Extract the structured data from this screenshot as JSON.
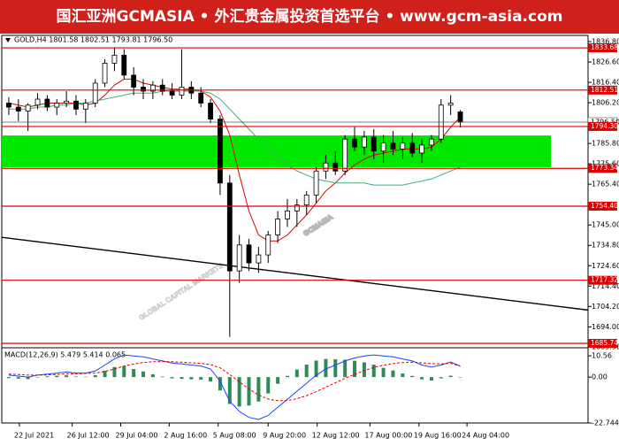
{
  "banner": {
    "title": "国汇亚洲GCMASIA • 外汇贵金属投资首选平台 • www.gcm-asia.com"
  },
  "watermark": {
    "text": "GCMASIA",
    "subtext": "GLOBAL CAPITAL MARKETS"
  },
  "chart_data": [
    {
      "type": "candlestick",
      "title": "GOLD,H4 1801.58 1802.51 1793.81 1796.50",
      "xlim": [
        -0.73,
        60.3
      ],
      "ylim": [
        1683.96,
        1839.9
      ],
      "yticks": [
        {
          "value": 1836.8,
          "label": "1836.80"
        },
        {
          "value": 1826.6,
          "label": "1826.60"
        },
        {
          "value": 1816.4,
          "label": "1816.40"
        },
        {
          "value": 1806.2,
          "label": "1806.20"
        },
        {
          "value": 1785.8,
          "label": "1785.80"
        },
        {
          "value": 1775.6,
          "label": "1775.60"
        },
        {
          "value": 1765.4,
          "label": "1765.40"
        },
        {
          "value": 1745,
          "label": "1745.00"
        },
        {
          "value": 1734.8,
          "label": "1734.80"
        },
        {
          "value": 1724.6,
          "label": "1724.60"
        },
        {
          "value": 1714.4,
          "label": "1714.40"
        },
        {
          "value": 1704.2,
          "label": "1704.20"
        },
        {
          "value": 1694,
          "label": "1694.00"
        },
        1683.96
      ],
      "open": [
        1806,
        1804,
        1802,
        1805,
        1808,
        1804,
        1806,
        1807,
        1803,
        1806,
        1816,
        1826,
        1830,
        1820,
        1814,
        1812,
        1815,
        1812,
        1810,
        1814,
        1811,
        1806,
        1798,
        1766,
        1722,
        1735,
        1726,
        1730,
        1740,
        1748,
        1752,
        1755,
        1760,
        1772,
        1776,
        1772,
        1788,
        1784,
        1789,
        1782,
        1786,
        1783,
        1786,
        1781,
        1785,
        1788,
        1805,
        1801.58
      ],
      "high": [
        1809,
        1808,
        1806,
        1811,
        1810,
        1808,
        1812,
        1810,
        1808,
        1818,
        1828,
        1834,
        1833,
        1824,
        1818,
        1817,
        1818,
        1816,
        1833,
        1817,
        1814,
        1808,
        1800,
        1770,
        1740,
        1738,
        1734,
        1742,
        1752,
        1758,
        1758,
        1762,
        1774,
        1780,
        1782,
        1790,
        1794,
        1792,
        1793,
        1790,
        1792,
        1789,
        1791,
        1788,
        1790,
        1808,
        1810,
        1802.51
      ],
      "low": [
        1800,
        1797,
        1792,
        1803,
        1802,
        1800,
        1804,
        1800,
        1796,
        1804,
        1814,
        1822,
        1818,
        1810,
        1808,
        1808,
        1810,
        1808,
        1808,
        1808,
        1804,
        1796,
        1760,
        1689,
        1716,
        1722,
        1721,
        1726,
        1736,
        1744,
        1744,
        1750,
        1756,
        1768,
        1770,
        1770,
        1782,
        1780,
        1778,
        1776,
        1780,
        1778,
        1779,
        1776,
        1782,
        1786,
        1800,
        1793.81
      ],
      "close": [
        1804,
        1802,
        1805,
        1808,
        1804,
        1806,
        1807,
        1803,
        1806,
        1816,
        1826,
        1830,
        1820,
        1814,
        1812,
        1815,
        1812,
        1810,
        1814,
        1811,
        1806,
        1798,
        1766,
        1722,
        1735,
        1726,
        1730,
        1740,
        1748,
        1752,
        1755,
        1760,
        1772,
        1776,
        1772,
        1788,
        1784,
        1789,
        1782,
        1786,
        1783,
        1786,
        1781,
        1785,
        1788,
        1805,
        1806,
        1796.5
      ],
      "lines": [
        {
          "color": "#e00000",
          "values": [
            1806,
            1805,
            1804,
            1805,
            1806,
            1806,
            1806,
            1806,
            1805,
            1806,
            1810,
            1815,
            1818,
            1818,
            1816,
            1815,
            1814,
            1813,
            1813,
            1813,
            1812,
            1809,
            1802,
            1790,
            1770,
            1752,
            1740,
            1737,
            1737,
            1740,
            1745,
            1750,
            1756,
            1762,
            1766,
            1771,
            1775,
            1778,
            1780,
            1781,
            1782,
            1783,
            1783,
            1783,
            1784,
            1788,
            1794,
            1799
          ]
        },
        {
          "color": "#3cb371",
          "values": [
            1803,
            1803,
            1803,
            1804,
            1804,
            1805,
            1805,
            1806,
            1806,
            1807,
            1808,
            1809,
            1810,
            1811,
            1811,
            1811,
            1812,
            1812,
            1812,
            1812,
            1812,
            1811,
            1808,
            1803,
            1798,
            1793,
            1788,
            1783,
            1779,
            1775,
            1772,
            1770,
            1768,
            1767,
            1766,
            1766,
            1766,
            1766,
            1765,
            1765,
            1765,
            1765,
            1766,
            1767,
            1768,
            1770,
            1772,
            1774
          ]
        }
      ],
      "zone": {
        "from": 1773.9,
        "to": 1789.8,
        "color": "#00e800"
      },
      "levels": [
        1833.68,
        1812.51,
        {
          "value": 1794.3,
          "label": "1794.30"
        },
        1773.34,
        {
          "value": 1754.4,
          "label": "1754.40"
        },
        1717.32,
        1685.74
      ],
      "level_color": "#e00000",
      "current": {
        "value": 1796.5,
        "label": "1796.50"
      },
      "trendline": {
        "x": [
          -0.73,
          60.3
        ],
        "y": [
          1738.8,
          1702.4
        ]
      }
    },
    {
      "type": "macd",
      "title": "MACD(12,26,9) 5.479 5.414 0.065",
      "xlim": [
        -0.73,
        60.3
      ],
      "ylim": [
        -22.744,
        14.1
      ],
      "yticks": [
        10.56,
        {
          "value": 0,
          "label": "0.00"
        },
        -22.744
      ],
      "histogram": {
        "color": "#2e8b57",
        "values": [
          -0.5,
          -0.8,
          -1,
          0,
          0.4,
          0.7,
          0.9,
          0.3,
          0.2,
          1,
          3.2,
          5,
          5.5,
          4,
          2.8,
          1.4,
          0.3,
          -0.6,
          -0.9,
          -1.1,
          -1.3,
          -2.2,
          -6.6,
          -13.3,
          -14.6,
          -14.1,
          -12.1,
          -8.1,
          -3.3,
          0.6,
          3.7,
          6.2,
          8.2,
          9,
          8.8,
          8.6,
          8.1,
          7.3,
          6.2,
          4.6,
          3.3,
          1.8,
          0.6,
          -1.1,
          -1.7,
          -0.6,
          0.7,
          0.065
        ]
      },
      "lines": [
        {
          "color": "#1e40ff",
          "dash": false,
          "values": [
            1,
            0.5,
            0,
            1,
            1.5,
            2,
            2.5,
            2,
            2,
            3,
            6,
            9,
            11,
            10.5,
            10,
            9,
            8,
            7,
            6.5,
            6,
            5.5,
            4,
            -2,
            -12,
            -17,
            -20,
            -21,
            -19,
            -15,
            -11,
            -7,
            -3,
            1,
            4,
            6,
            8,
            9.5,
            10.5,
            11,
            10.5,
            10,
            9,
            8,
            6,
            5,
            6,
            7.5,
            5.479
          ]
        },
        {
          "color": "#e00000",
          "dash": true,
          "values": [
            1.5,
            1.3,
            1,
            1,
            1.1,
            1.3,
            1.6,
            1.7,
            1.8,
            2,
            2.8,
            4,
            5.5,
            6.5,
            7.2,
            7.6,
            7.7,
            7.6,
            7.4,
            7.1,
            6.8,
            6.2,
            4.6,
            1.3,
            -2.4,
            -5.9,
            -8.9,
            -10.9,
            -11.7,
            -11.6,
            -10.7,
            -9.2,
            -7.2,
            -5,
            -2.8,
            -0.6,
            1.4,
            3.2,
            4.8,
            5.9,
            6.7,
            7.2,
            7.4,
            7.1,
            6.7,
            6.6,
            6.8,
            5.414
          ]
        }
      ],
      "xticks": [
        {
          "value": 1.1,
          "label": "22 Jul 2021"
        },
        {
          "value": 6.6,
          "label": "26 Jul 12:00"
        },
        {
          "value": 11.65,
          "label": "29 Jul 04:00"
        },
        {
          "value": 16.7,
          "label": "2 Aug 16:00"
        },
        {
          "value": 21.8,
          "label": "5 Aug 08:00"
        },
        {
          "value": 27,
          "label": "9 Aug 20:00"
        },
        {
          "value": 32.1,
          "label": "12 Aug 12:00"
        },
        {
          "value": 37.6,
          "label": "17 Aug 00:00"
        },
        {
          "value": 42.7,
          "label": "19 Aug 16:00"
        },
        {
          "value": 47.7,
          "label": "24 Aug 04:00"
        }
      ]
    }
  ]
}
